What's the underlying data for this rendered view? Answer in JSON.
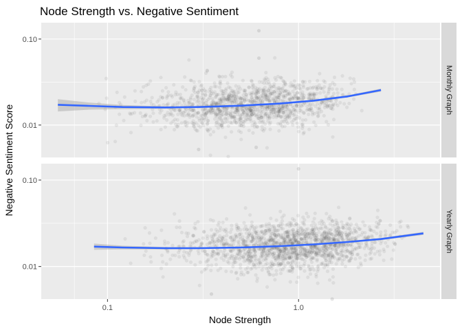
{
  "chart_data": {
    "type": "scatter",
    "title": "Node Strength vs. Negative Sentiment",
    "xlabel": "Node Strength",
    "ylabel": "Negative Sentiment Score",
    "x_scale": "log10",
    "y_scale": "log10",
    "xlim": [
      0.045,
      5.5
    ],
    "ylim": [
      0.0042,
      0.155
    ],
    "x_ticks": [
      {
        "value": 0.1,
        "label": "0.1"
      },
      {
        "value": 1.0,
        "label": "1.0"
      }
    ],
    "y_ticks": [
      {
        "value": 0.01,
        "label": "0.01"
      },
      {
        "value": 0.1,
        "label": "0.10"
      }
    ],
    "grid": true,
    "point_color": "#333333",
    "smooth_color": "#3366ff",
    "ribbon_color": "#999999",
    "panel_background": "#ebebeb",
    "strip_background": "#d9d9d9",
    "panels": [
      {
        "strip": "Monthly Graph",
        "x_range": [
          0.055,
          2.7
        ],
        "point_count": 1300,
        "smooth": {
          "x": [
            0.055,
            0.08,
            0.12,
            0.2,
            0.3,
            0.5,
            0.8,
            1.2,
            1.8,
            2.7
          ],
          "y": [
            0.0172,
            0.0167,
            0.0162,
            0.016,
            0.0162,
            0.0168,
            0.0178,
            0.0192,
            0.0215,
            0.0255
          ],
          "se": [
            0.0028,
            0.0016,
            0.0009,
            0.0005,
            0.0004,
            0.0003,
            0.0003,
            0.0004,
            0.0006,
            0.001
          ]
        },
        "outliers": [
          {
            "x": 0.62,
            "y": 0.125
          },
          {
            "x": 0.62,
            "y": 0.06
          },
          {
            "x": 0.3,
            "y": 0.0052
          },
          {
            "x": 0.6,
            "y": 0.0055
          }
        ]
      },
      {
        "strip": "Yearly Graph",
        "x_range": [
          0.085,
          4.5
        ],
        "point_count": 1600,
        "smooth": {
          "x": [
            0.085,
            0.12,
            0.2,
            0.3,
            0.5,
            0.8,
            1.2,
            1.8,
            2.7,
            4.5
          ],
          "y": [
            0.017,
            0.0166,
            0.0163,
            0.0163,
            0.0166,
            0.0172,
            0.018,
            0.0192,
            0.0208,
            0.0242
          ],
          "se": [
            0.0014,
            0.0008,
            0.0005,
            0.0004,
            0.0003,
            0.0003,
            0.0003,
            0.0004,
            0.0006,
            0.001
          ]
        },
        "outliers": [
          {
            "x": 1.0,
            "y": 0.135
          },
          {
            "x": 0.35,
            "y": 0.0048
          },
          {
            "x": 1.5,
            "y": 0.0042
          }
        ]
      }
    ]
  }
}
